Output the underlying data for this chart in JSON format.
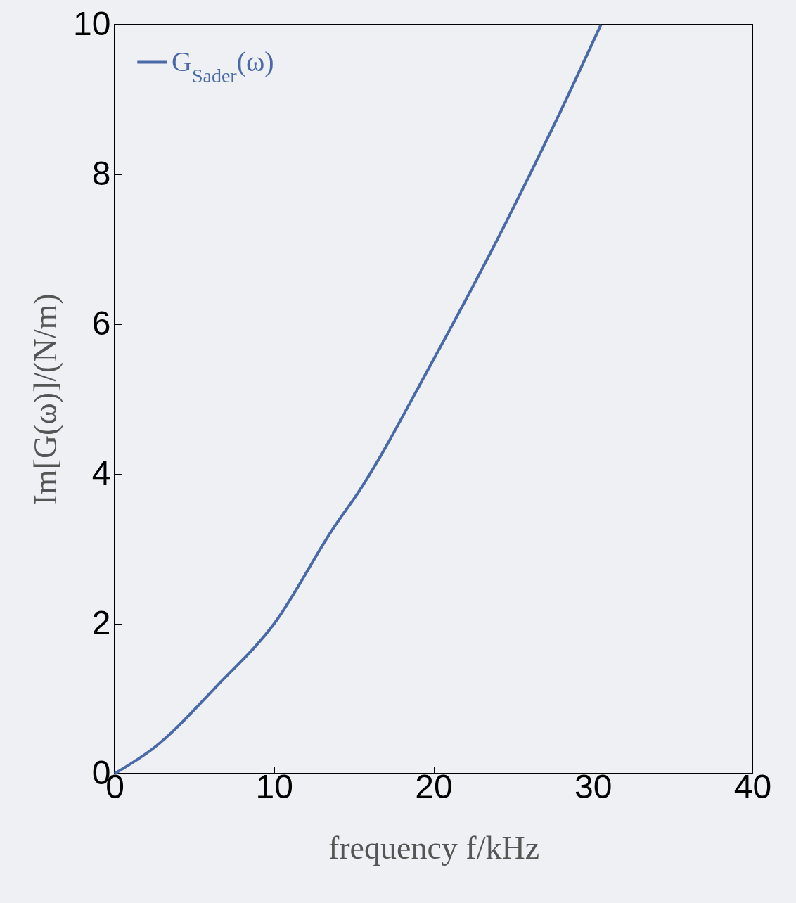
{
  "chart_data": {
    "type": "line",
    "xlabel": "frequency f/kHz",
    "ylabel": "Im[G(ω)]/(N/m)",
    "x": [
      0,
      2.5,
      6.5,
      10,
      13.76,
      15.3,
      19.85,
      24.5,
      26,
      27.65,
      30.5
    ],
    "series": [
      {
        "name": "G$_{Sader}$(ω)",
        "color": "#4a69a8",
        "values": [
          0,
          0.35,
          1.19,
          2.0,
          3.29,
          3.76,
          5.47,
          7.34,
          7.98,
          8.7,
          10
        ]
      }
    ],
    "xlim": [
      0,
      40
    ],
    "xticks": [
      0,
      10,
      20,
      30,
      40
    ],
    "ylim": [
      0,
      10
    ],
    "yticks": [
      0,
      2,
      4,
      6,
      8,
      10
    ],
    "grid": false,
    "legend": "top left",
    "marker": "none",
    "line_style": "solid"
  }
}
